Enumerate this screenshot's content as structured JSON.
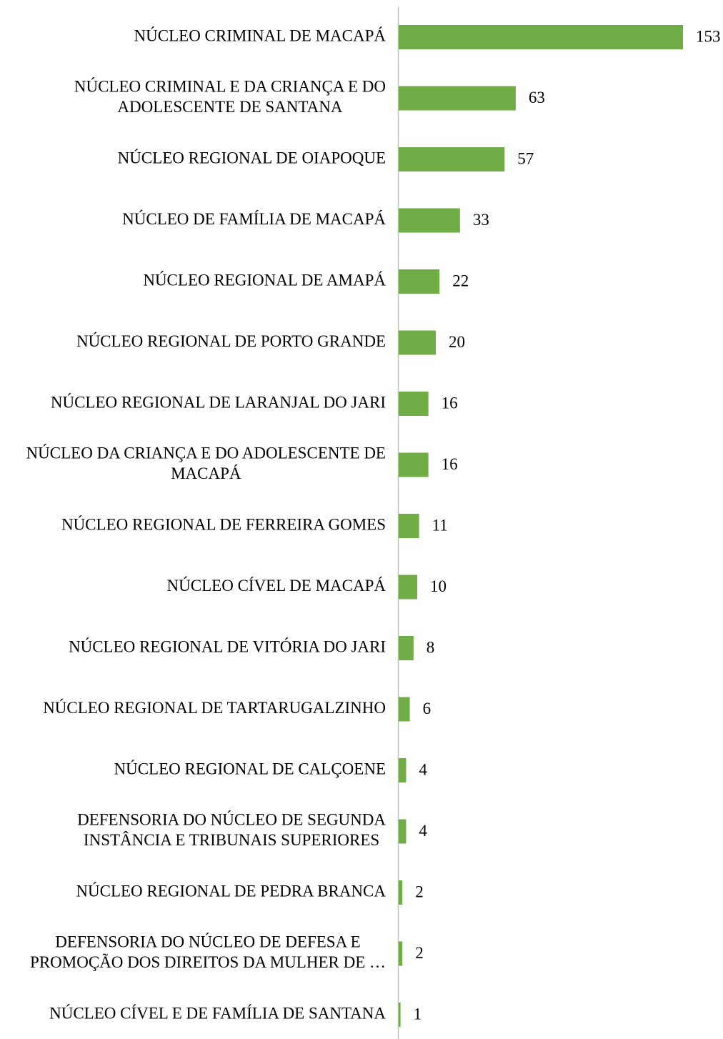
{
  "chart_data": {
    "type": "bar",
    "orientation": "horizontal",
    "color": "#70ad47",
    "categories": [
      [
        "NÚCLEO CRIMINAL DE MACAPÁ"
      ],
      [
        "NÚCLEO CRIMINAL E DA CRIANÇA E DO",
        "ADOLESCENTE DE SANTANA"
      ],
      [
        "NÚCLEO REGIONAL DE OIAPOQUE"
      ],
      [
        "NÚCLEO DE FAMÍLIA DE MACAPÁ"
      ],
      [
        "NÚCLEO REGIONAL DE AMAPÁ"
      ],
      [
        "NÚCLEO REGIONAL DE PORTO GRANDE"
      ],
      [
        "NÚCLEO REGIONAL DE LARANJAL DO JARI"
      ],
      [
        "NÚCLEO DA CRIANÇA E DO ADOLESCENTE DE",
        "MACAPÁ"
      ],
      [
        "NÚCLEO REGIONAL DE FERREIRA GOMES"
      ],
      [
        "NÚCLEO CÍVEL DE MACAPÁ"
      ],
      [
        "NÚCLEO REGIONAL DE VITÓRIA DO JARI"
      ],
      [
        "NÚCLEO REGIONAL DE TARTARUGALZINHO"
      ],
      [
        "NÚCLEO REGIONAL DE CALÇOENE"
      ],
      [
        "DEFENSORIA DO NÚCLEO DE SEGUNDA",
        "INSTÂNCIA E TRIBUNAIS SUPERIORES"
      ],
      [
        "NÚCLEO REGIONAL DE PEDRA BRANCA"
      ],
      [
        "DEFENSORIA DO NÚCLEO DE DEFESA E",
        "PROMOÇÃO DOS DIREITOS DA MULHER DE …"
      ],
      [
        "NÚCLEO CÍVEL E DE FAMÍLIA DE SANTANA"
      ]
    ],
    "values": [
      153,
      63,
      57,
      33,
      22,
      20,
      16,
      16,
      11,
      10,
      8,
      6,
      4,
      4,
      2,
      2,
      1
    ]
  }
}
